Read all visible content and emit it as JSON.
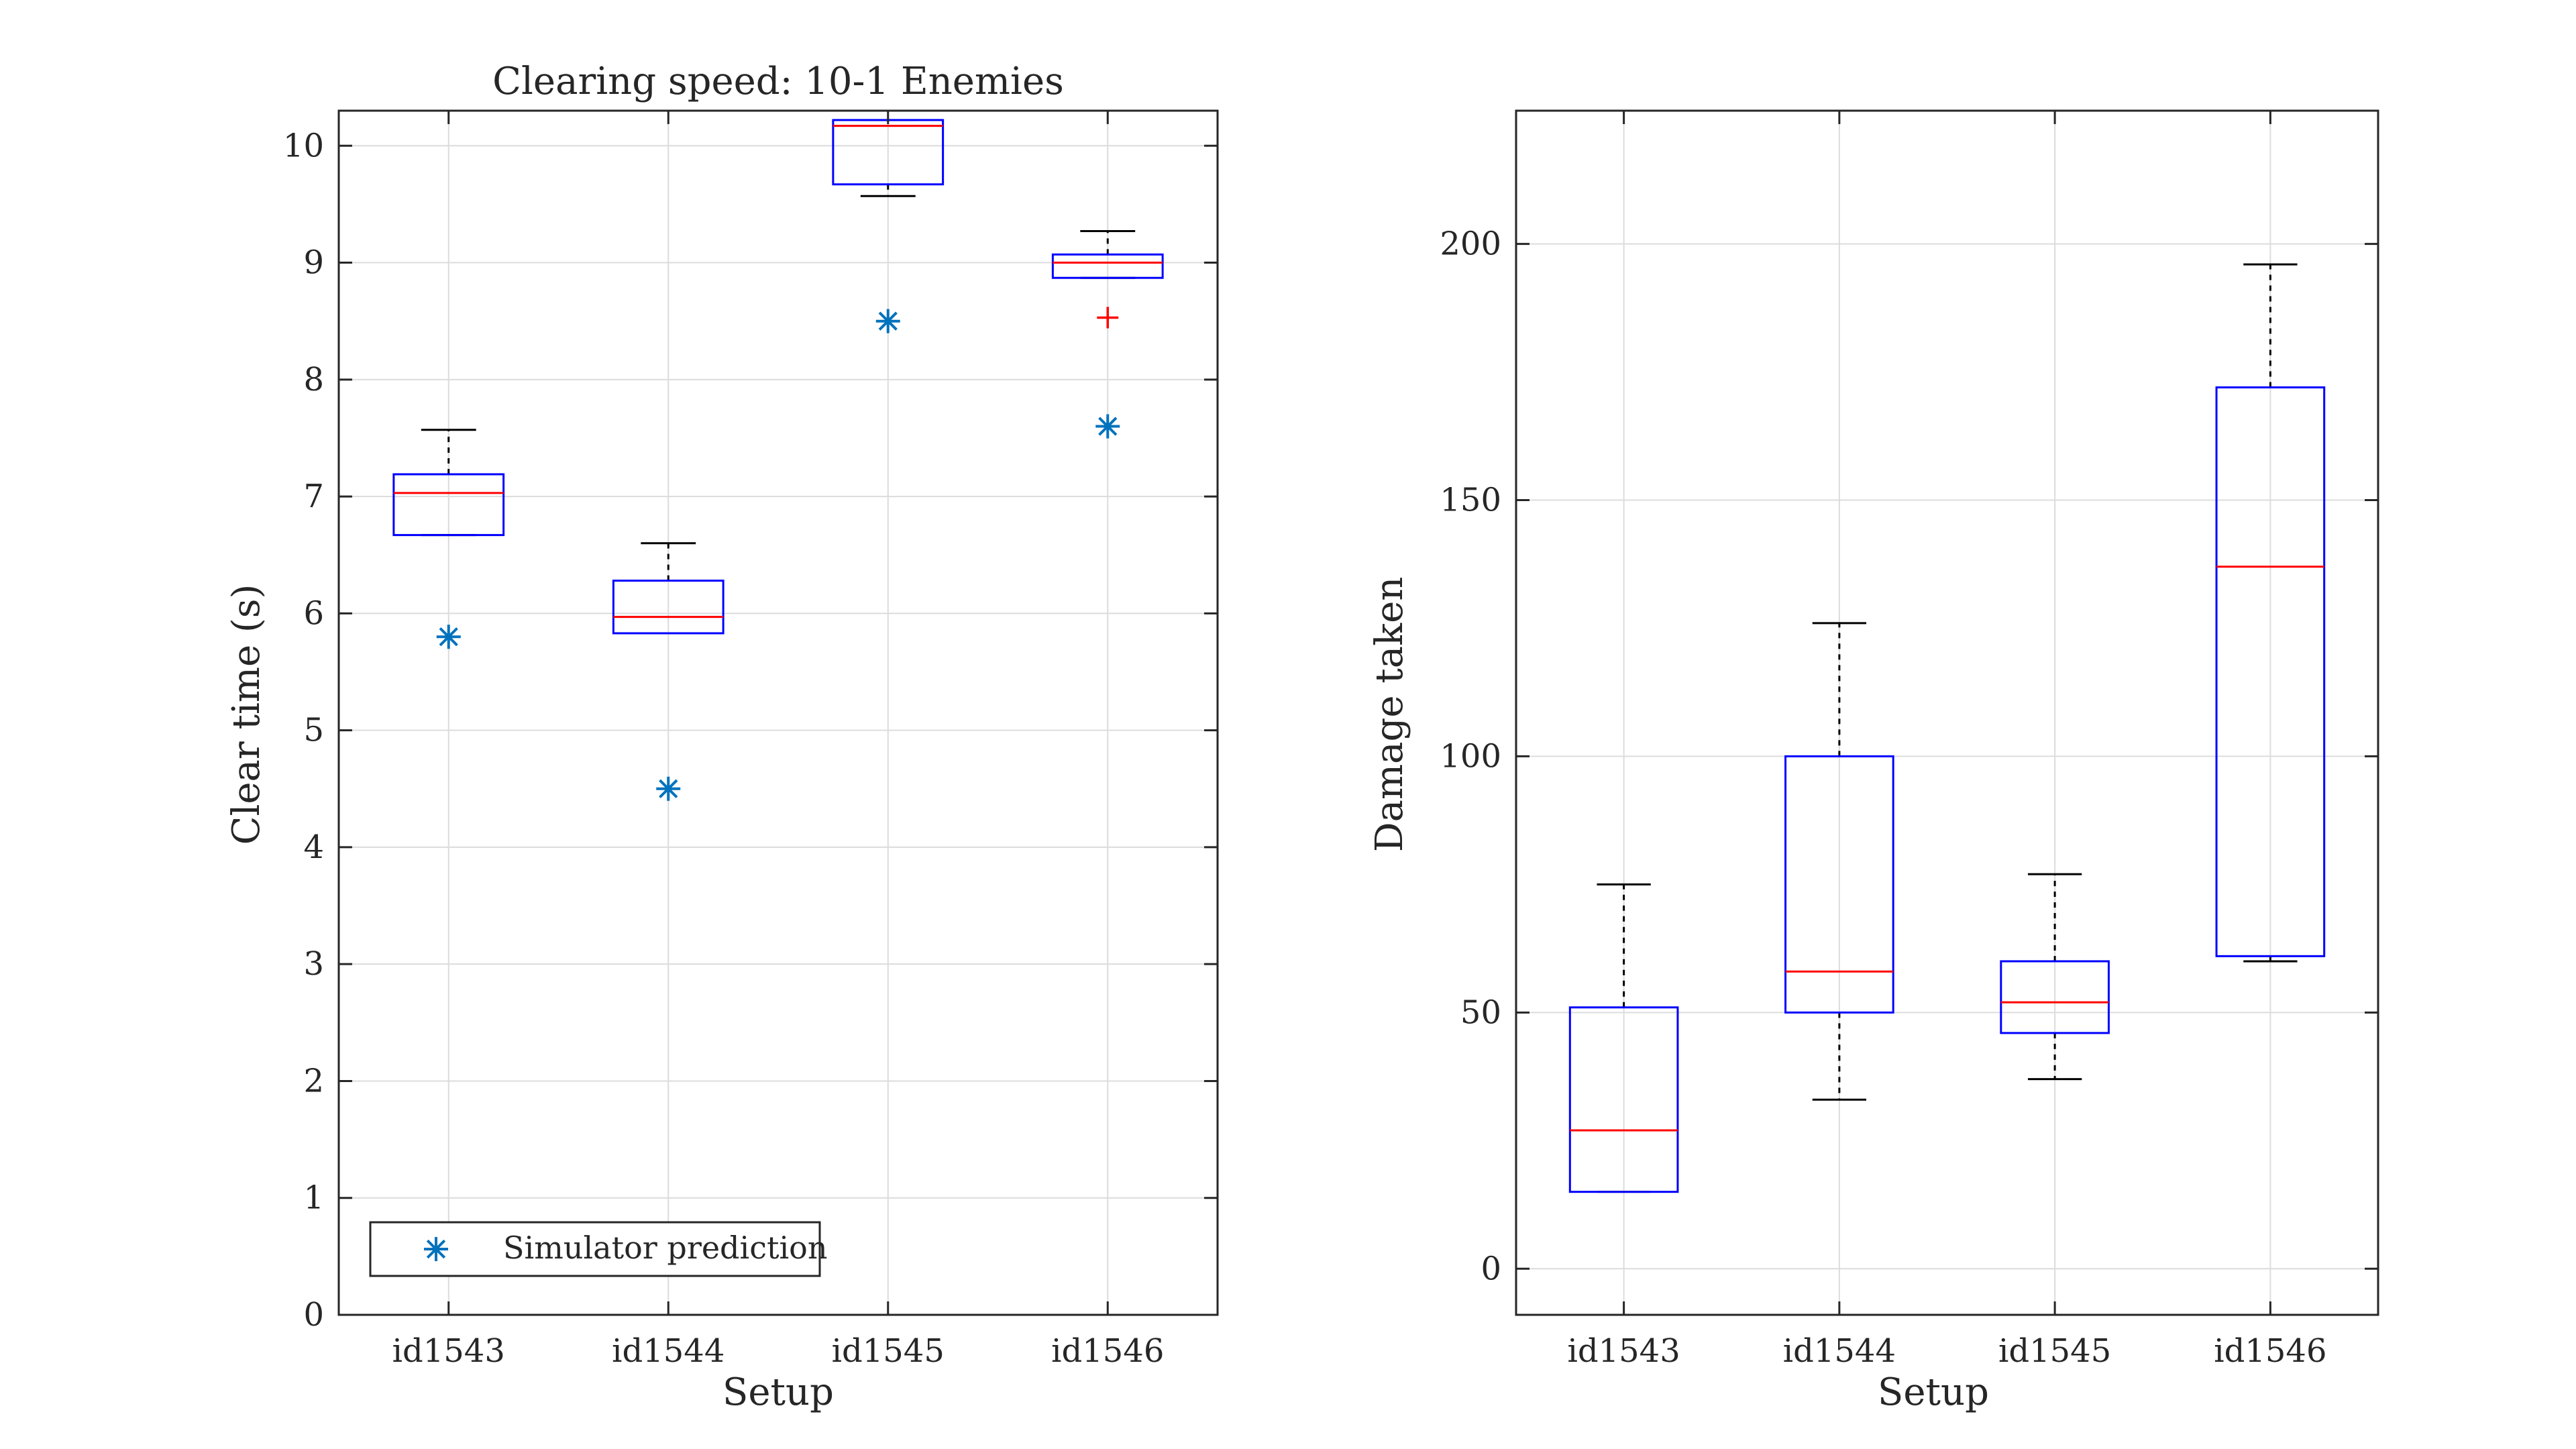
{
  "chart_data": [
    {
      "type": "box",
      "title": "Clearing speed: 10-1 Enemies",
      "xlabel": "Setup",
      "ylabel": "Clear time (s)",
      "categories": [
        "id1543",
        "id1544",
        "id1545",
        "id1546"
      ],
      "ylim": [
        0,
        10.3
      ],
      "yticks": [
        0,
        1,
        2,
        3,
        4,
        5,
        6,
        7,
        8,
        9,
        10
      ],
      "grid": true,
      "boxes": [
        {
          "category": "id1543",
          "whisker_low": 6.67,
          "q1": 6.67,
          "median": 7.03,
          "q3": 7.19,
          "whisker_high": 7.57,
          "outliers": []
        },
        {
          "category": "id1544",
          "whisker_low": 5.83,
          "q1": 5.83,
          "median": 5.97,
          "q3": 6.28,
          "whisker_high": 6.6,
          "outliers": []
        },
        {
          "category": "id1545",
          "whisker_low": 9.57,
          "q1": 9.67,
          "median": 10.17,
          "q3": 10.22,
          "whisker_high": 10.22,
          "outliers": []
        },
        {
          "category": "id1546",
          "whisker_low": 8.87,
          "q1": 8.87,
          "median": 9.0,
          "q3": 9.07,
          "whisker_high": 9.27,
          "outliers": [
            8.53
          ]
        }
      ],
      "series": [
        {
          "name": "Simulator prediction",
          "marker": "asterisk",
          "values": [
            5.8,
            4.5,
            8.5,
            7.6
          ]
        }
      ],
      "legend": {
        "placement": "bottom-left",
        "entries": [
          "Simulator prediction"
        ]
      },
      "colors": {
        "box": "#0000ff",
        "median": "#ff0000",
        "whisker": "#000000",
        "outlier": "#ff0000",
        "prediction": "#0072bd",
        "grid": "#dcdcdc",
        "axes": "#262626"
      }
    },
    {
      "type": "box",
      "title": "",
      "xlabel": "Setup",
      "ylabel": "Damage taken",
      "categories": [
        "id1543",
        "id1544",
        "id1545",
        "id1546"
      ],
      "ylim": [
        -9,
        226
      ],
      "yticks": [
        0,
        50,
        100,
        150,
        200
      ],
      "grid": true,
      "boxes": [
        {
          "category": "id1543",
          "whisker_low": 15,
          "q1": 15,
          "median": 27,
          "q3": 51,
          "whisker_high": 75,
          "outliers": []
        },
        {
          "category": "id1544",
          "whisker_low": 33,
          "q1": 50,
          "median": 58,
          "q3": 100,
          "whisker_high": 126,
          "outliers": []
        },
        {
          "category": "id1545",
          "whisker_low": 37,
          "q1": 46,
          "median": 52,
          "q3": 60,
          "whisker_high": 77,
          "outliers": []
        },
        {
          "category": "id1546",
          "whisker_low": 60,
          "q1": 61,
          "median": 137,
          "q3": 172,
          "whisker_high": 196,
          "outliers": []
        }
      ],
      "colors": {
        "box": "#0000ff",
        "median": "#ff0000",
        "whisker": "#000000",
        "grid": "#dcdcdc",
        "axes": "#262626"
      }
    }
  ]
}
